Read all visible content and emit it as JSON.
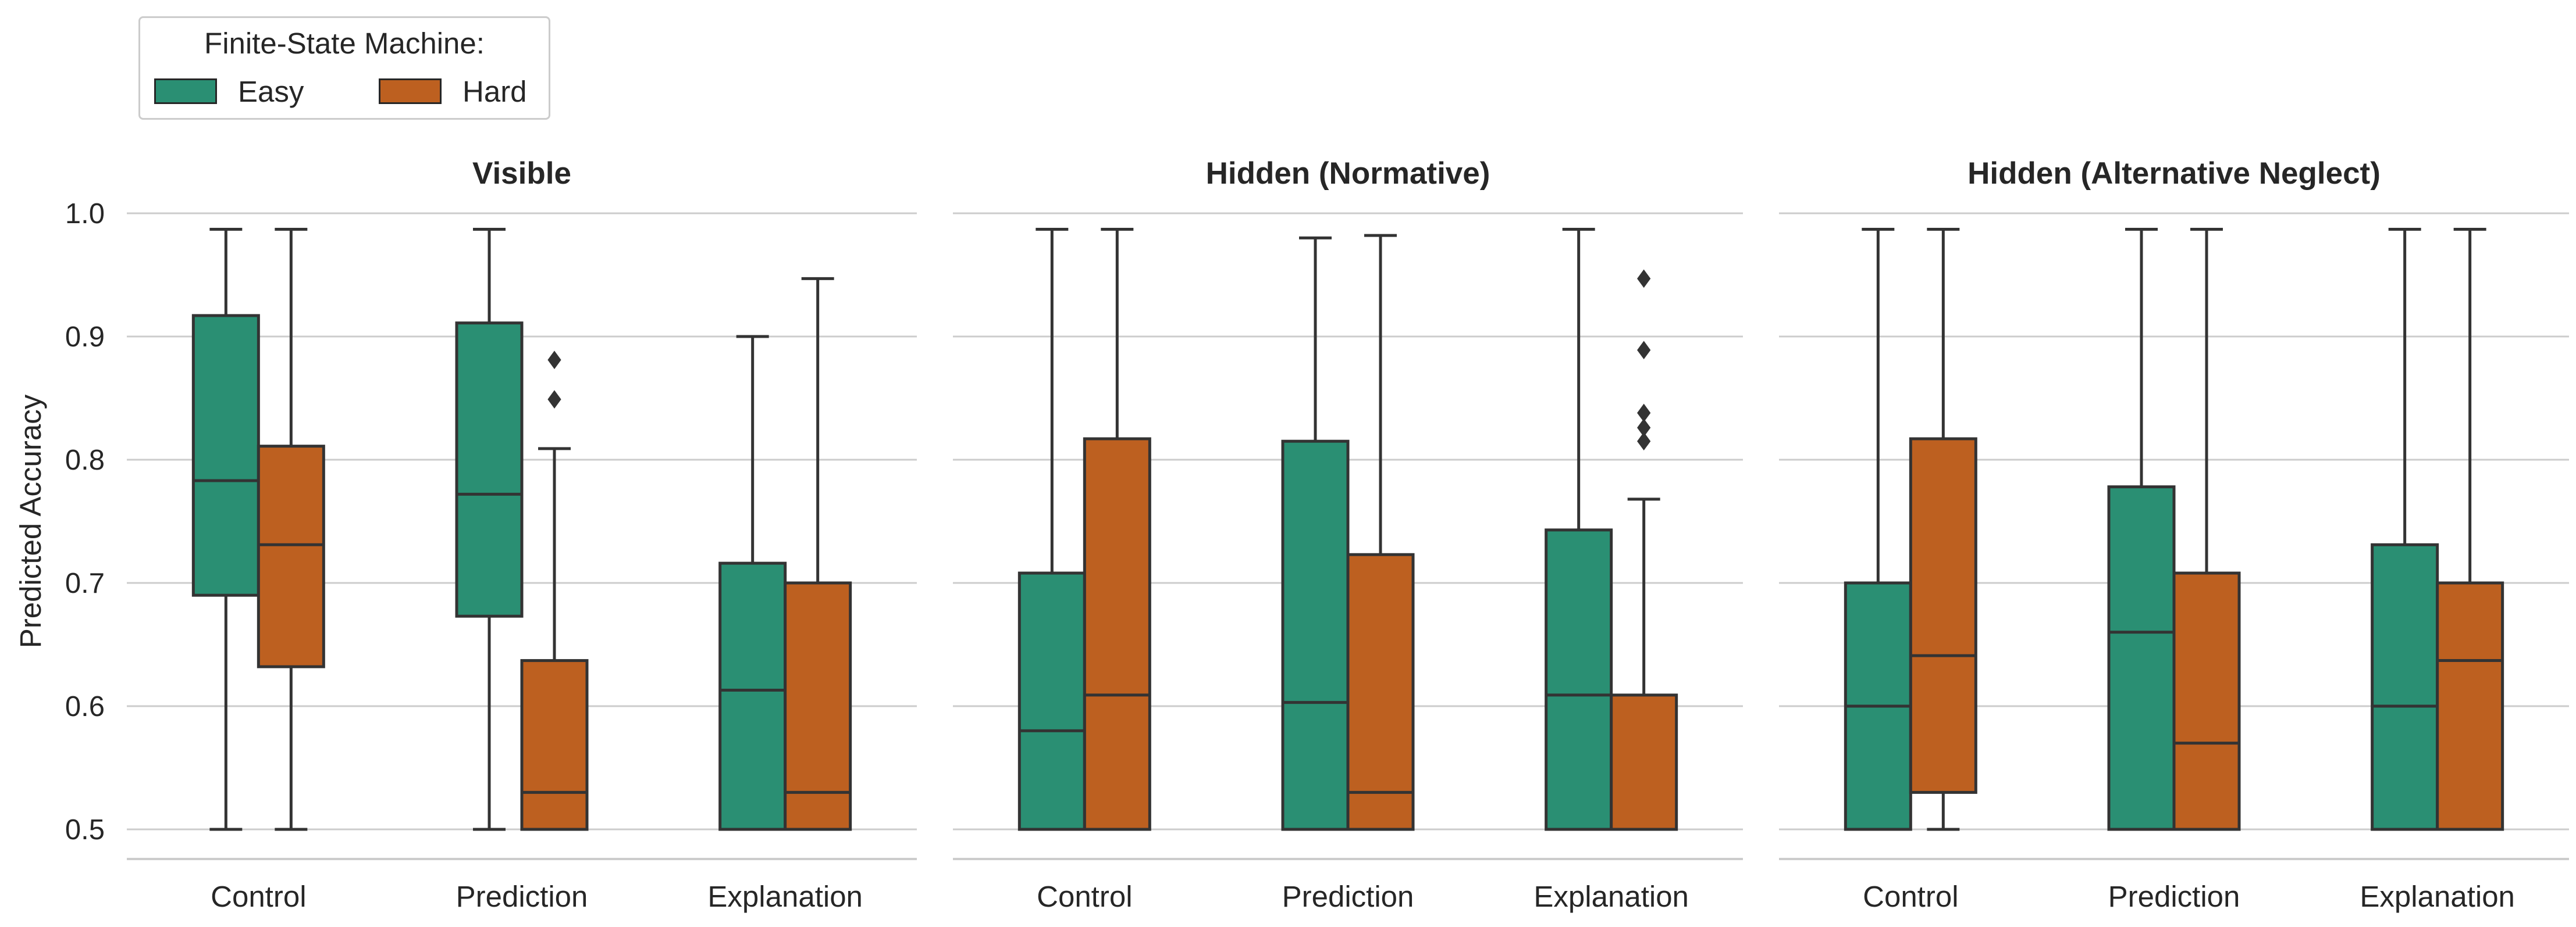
{
  "legend": {
    "title": "Finite-State Machine:",
    "items": [
      {
        "label": "Easy",
        "color": "#2a8f73"
      },
      {
        "label": "Hard",
        "color": "#bd6020"
      }
    ]
  },
  "chart_data": {
    "type": "box",
    "ylabel": "Predicted Accuracy",
    "ylim": [
      0.5,
      1.0
    ],
    "yticks": [
      "0.5",
      "0.6",
      "0.7",
      "0.8",
      "0.9",
      "1.0"
    ],
    "grid": "horizontal",
    "legend_position": "top-left",
    "categories": [
      "Control",
      "Prediction",
      "Explanation"
    ],
    "series_names": [
      "Easy",
      "Hard"
    ],
    "colors": {
      "Easy": "#2a8f73",
      "Hard": "#bd6020"
    },
    "panels": [
      {
        "title": "Visible",
        "boxes": [
          {
            "category": "Control",
            "series": "Easy",
            "whislo": 0.5,
            "q1": 0.69,
            "med": 0.783,
            "q3": 0.917,
            "whishi": 0.987,
            "fliers": []
          },
          {
            "category": "Control",
            "series": "Hard",
            "whislo": 0.5,
            "q1": 0.632,
            "med": 0.731,
            "q3": 0.811,
            "whishi": 0.987,
            "fliers": []
          },
          {
            "category": "Prediction",
            "series": "Easy",
            "whislo": 0.5,
            "q1": 0.673,
            "med": 0.772,
            "q3": 0.911,
            "whishi": 0.987,
            "fliers": []
          },
          {
            "category": "Prediction",
            "series": "Hard",
            "whislo": 0.5,
            "q1": 0.5,
            "med": 0.53,
            "q3": 0.637,
            "whishi": 0.809,
            "fliers": [
              0.849,
              0.881
            ]
          },
          {
            "category": "Explanation",
            "series": "Easy",
            "whislo": 0.5,
            "q1": 0.5,
            "med": 0.613,
            "q3": 0.716,
            "whishi": 0.9,
            "fliers": []
          },
          {
            "category": "Explanation",
            "series": "Hard",
            "whislo": 0.5,
            "q1": 0.5,
            "med": 0.53,
            "q3": 0.7,
            "whishi": 0.947,
            "fliers": []
          }
        ]
      },
      {
        "title": "Hidden (Normative)",
        "boxes": [
          {
            "category": "Control",
            "series": "Easy",
            "whislo": 0.5,
            "q1": 0.5,
            "med": 0.58,
            "q3": 0.708,
            "whishi": 0.987,
            "fliers": []
          },
          {
            "category": "Control",
            "series": "Hard",
            "whislo": 0.5,
            "q1": 0.5,
            "med": 0.609,
            "q3": 0.817,
            "whishi": 0.987,
            "fliers": []
          },
          {
            "category": "Prediction",
            "series": "Easy",
            "whislo": 0.5,
            "q1": 0.5,
            "med": 0.603,
            "q3": 0.815,
            "whishi": 0.98,
            "fliers": []
          },
          {
            "category": "Prediction",
            "series": "Hard",
            "whislo": 0.5,
            "q1": 0.5,
            "med": 0.53,
            "q3": 0.723,
            "whishi": 0.982,
            "fliers": []
          },
          {
            "category": "Explanation",
            "series": "Easy",
            "whislo": 0.5,
            "q1": 0.5,
            "med": 0.609,
            "q3": 0.743,
            "whishi": 0.987,
            "fliers": []
          },
          {
            "category": "Explanation",
            "series": "Hard",
            "whislo": 0.5,
            "q1": 0.5,
            "med": 0.5,
            "q3": 0.609,
            "whishi": 0.768,
            "fliers": [
              0.815,
              0.826,
              0.838,
              0.889,
              0.947
            ]
          }
        ]
      },
      {
        "title": "Hidden (Alternative Neglect)",
        "boxes": [
          {
            "category": "Control",
            "series": "Easy",
            "whislo": 0.5,
            "q1": 0.5,
            "med": 0.6,
            "q3": 0.7,
            "whishi": 0.987,
            "fliers": []
          },
          {
            "category": "Control",
            "series": "Hard",
            "whislo": 0.5,
            "q1": 0.53,
            "med": 0.641,
            "q3": 0.817,
            "whishi": 0.987,
            "fliers": []
          },
          {
            "category": "Prediction",
            "series": "Easy",
            "whislo": 0.5,
            "q1": 0.5,
            "med": 0.66,
            "q3": 0.778,
            "whishi": 0.987,
            "fliers": []
          },
          {
            "category": "Prediction",
            "series": "Hard",
            "whislo": 0.5,
            "q1": 0.5,
            "med": 0.57,
            "q3": 0.708,
            "whishi": 0.987,
            "fliers": []
          },
          {
            "category": "Explanation",
            "series": "Easy",
            "whislo": 0.5,
            "q1": 0.5,
            "med": 0.6,
            "q3": 0.731,
            "whishi": 0.987,
            "fliers": []
          },
          {
            "category": "Explanation",
            "series": "Hard",
            "whislo": 0.5,
            "q1": 0.5,
            "med": 0.637,
            "q3": 0.7,
            "whishi": 0.987,
            "fliers": []
          }
        ]
      }
    ]
  }
}
